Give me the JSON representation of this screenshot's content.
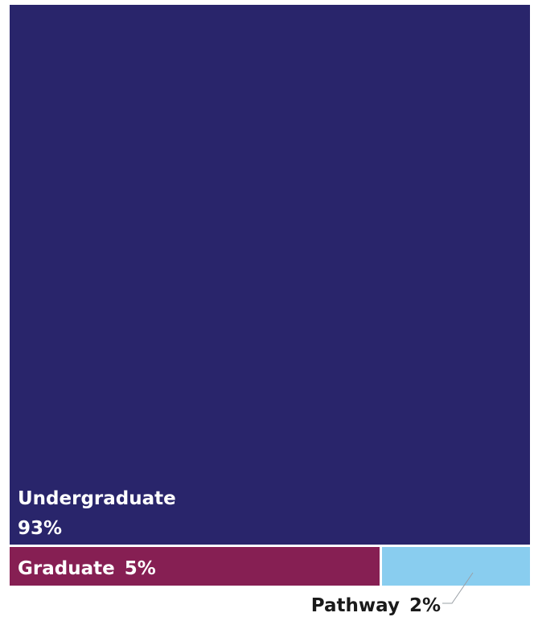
{
  "chart_data": {
    "type": "treemap",
    "title": "",
    "segments": [
      {
        "name": "Undergraduate",
        "value": 93,
        "value_label": "93%",
        "color": "#29256b"
      },
      {
        "name": "Graduate",
        "value": 5,
        "value_label": "5%",
        "color": "#861f53"
      },
      {
        "name": "Pathway",
        "value": 2,
        "value_label": "2%",
        "color": "#89cdef"
      }
    ]
  }
}
